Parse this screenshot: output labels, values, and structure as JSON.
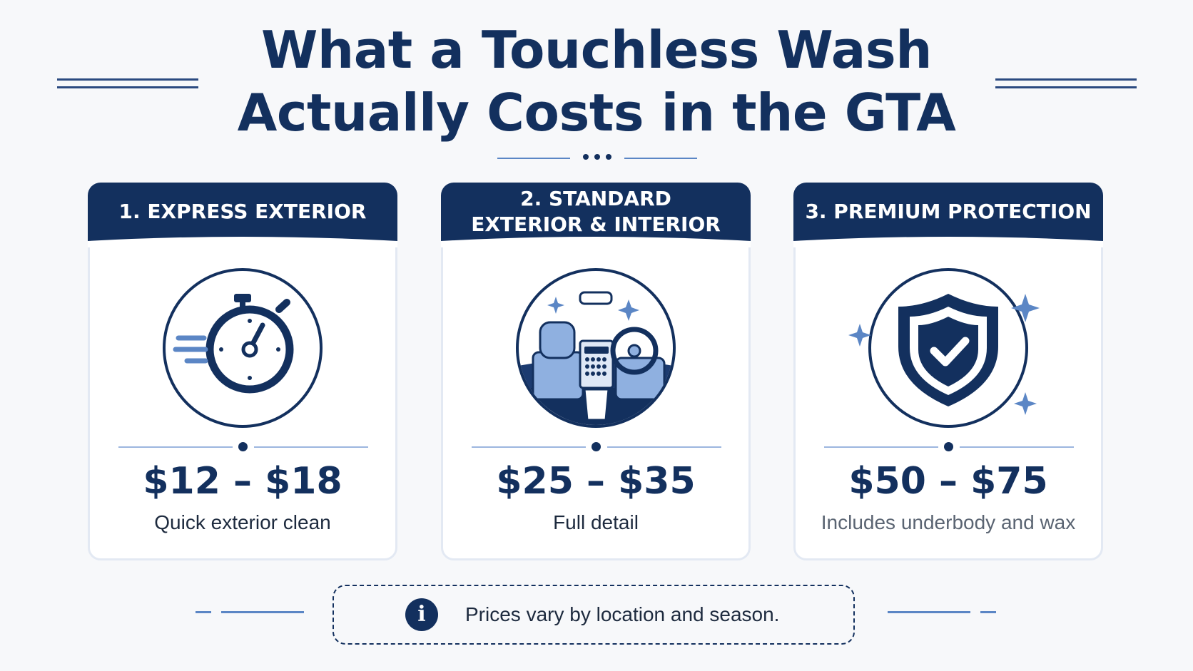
{
  "title": {
    "line1": "What a Touchless Wash",
    "line2": "Actually Costs in the GTA"
  },
  "colors": {
    "navy": "#13305e",
    "accent": "#5b86c5",
    "light_accent": "#9cb6df",
    "card_border": "#e3e9f3"
  },
  "cards": [
    {
      "title": "1. EXPRESS EXTERIOR",
      "icon": "stopwatch-icon",
      "price": "$12 – $18",
      "description": "Quick exterior clean"
    },
    {
      "title": "2. STANDARD\nEXTERIOR & INTERIOR",
      "icon": "car-interior-icon",
      "price": "$25 – $35",
      "description": "Full detail"
    },
    {
      "title": "3. PREMIUM PROTECTION",
      "icon": "shield-check-icon",
      "price": "$50 – $75",
      "description": "Includes underbody and wax"
    }
  ],
  "note": {
    "icon": "info-icon",
    "text": "Prices vary by location and season."
  }
}
